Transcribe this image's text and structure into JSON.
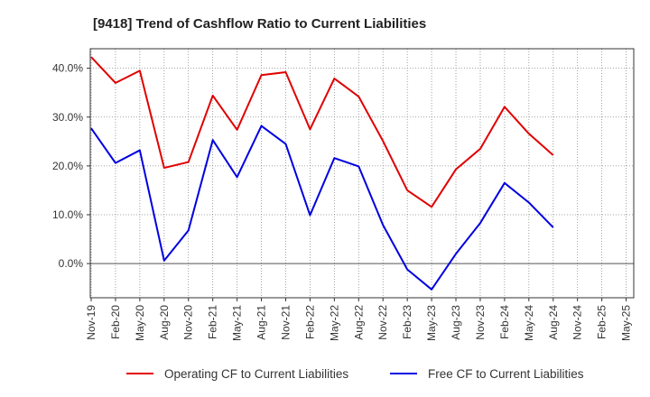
{
  "chart_data": {
    "type": "line",
    "title": "[9418]  Trend of Cashflow Ratio to Current Liabilities",
    "xlabel": "",
    "ylabel": "",
    "ylim": [
      -7,
      44
    ],
    "yticks": [
      0,
      10,
      20,
      30,
      40
    ],
    "ytick_labels": [
      "0.0%",
      "10.0%",
      "20.0%",
      "30.0%",
      "40.0%"
    ],
    "categories": [
      "Nov-19",
      "Feb-20",
      "May-20",
      "Aug-20",
      "Nov-20",
      "Feb-21",
      "May-21",
      "Aug-21",
      "Nov-21",
      "Feb-22",
      "May-22",
      "Aug-22",
      "Nov-22",
      "Feb-23",
      "May-23",
      "Aug-23",
      "Nov-23",
      "Feb-24",
      "May-24",
      "Aug-24",
      "Nov-24",
      "Feb-25",
      "May-25"
    ],
    "grid": true,
    "legend_position": "bottom",
    "series": [
      {
        "name": "Operating CF to Current Liabilities",
        "color": "#e00000",
        "values": [
          42.3,
          37.0,
          39.5,
          19.6,
          20.8,
          34.4,
          27.4,
          38.6,
          39.2,
          27.5,
          37.9,
          34.2,
          25.1,
          15.0,
          11.6,
          19.3,
          23.5,
          32.1,
          26.6,
          22.2,
          null,
          null,
          null
        ]
      },
      {
        "name": "Free CF to Current Liabilities",
        "color": "#0000e0",
        "values": [
          27.7,
          20.6,
          23.2,
          0.6,
          6.8,
          25.3,
          17.7,
          28.2,
          24.5,
          9.9,
          21.6,
          19.9,
          7.9,
          -1.2,
          -5.3,
          2.0,
          8.3,
          16.5,
          12.5,
          7.4,
          null,
          null,
          null
        ]
      }
    ]
  }
}
